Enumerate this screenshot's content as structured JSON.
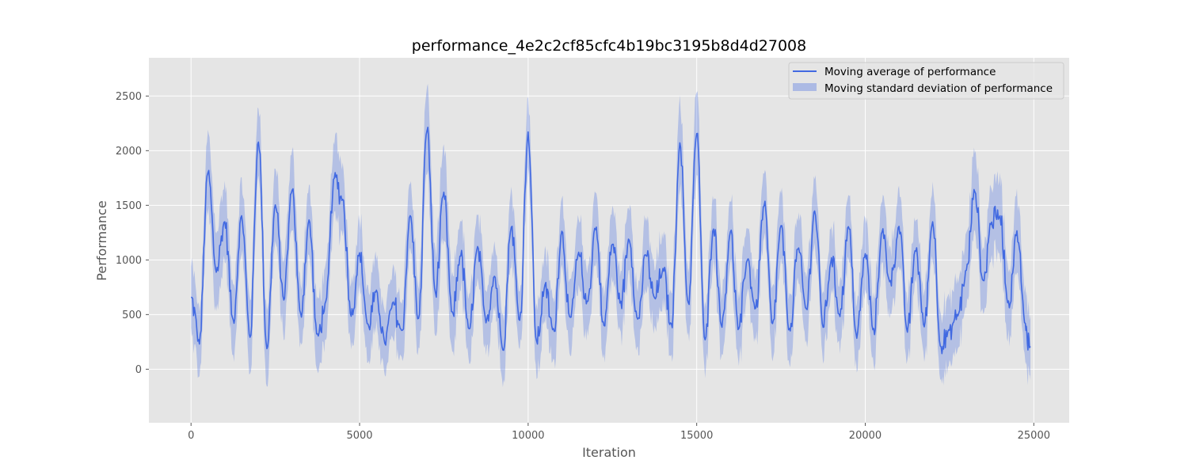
{
  "chart_data": {
    "type": "line",
    "title": "performance_4e2c2cf85cfc4b19bc3195b8d4d27008",
    "xlabel": "Iteration",
    "ylabel": "Performance",
    "xlim": [
      -1250,
      26050
    ],
    "ylim": [
      -490,
      2850
    ],
    "x_ticks": [
      0,
      5000,
      10000,
      15000,
      20000,
      25000
    ],
    "y_ticks": [
      0,
      500,
      1000,
      1500,
      2000,
      2500
    ],
    "grid": true,
    "legend_position": "top-right",
    "background": "#e5e5e5",
    "colors": {
      "line": "#4169e1",
      "band": "#4169e1"
    },
    "series": [
      {
        "name": "Moving average of performance",
        "kind": "line",
        "x": [
          0,
          250,
          500,
          750,
          1000,
          1250,
          1500,
          1750,
          2000,
          2250,
          2500,
          2750,
          3000,
          3250,
          3500,
          3750,
          4000,
          4250,
          4500,
          4750,
          5000,
          5250,
          5500,
          5750,
          6000,
          6250,
          6500,
          6750,
          7000,
          7250,
          7500,
          7750,
          8000,
          8250,
          8500,
          8750,
          9000,
          9250,
          9500,
          9750,
          10000,
          10250,
          10500,
          10750,
          11000,
          11250,
          11500,
          11750,
          12000,
          12250,
          12500,
          12750,
          13000,
          13250,
          13500,
          13750,
          14000,
          14250,
          14500,
          14750,
          15000,
          15250,
          15500,
          15750,
          16000,
          16250,
          16500,
          16750,
          17000,
          17250,
          17500,
          17750,
          18000,
          18250,
          18500,
          18750,
          19000,
          19250,
          19500,
          19750,
          20000,
          20250,
          20500,
          20750,
          21000,
          21250,
          21500,
          21750,
          22000,
          22250,
          22500,
          22750,
          23000,
          23250,
          23500,
          23750,
          24000,
          24250,
          24500,
          24750,
          24900
        ],
        "y": [
          650,
          250,
          1800,
          900,
          1350,
          450,
          1400,
          300,
          2100,
          200,
          1500,
          650,
          1650,
          500,
          1350,
          300,
          600,
          1750,
          1550,
          500,
          1050,
          400,
          700,
          250,
          600,
          350,
          1400,
          450,
          2200,
          700,
          1600,
          500,
          1050,
          350,
          1100,
          450,
          850,
          200,
          1300,
          450,
          2150,
          250,
          750,
          350,
          1250,
          450,
          1050,
          600,
          1300,
          400,
          1150,
          600,
          1200,
          450,
          1050,
          650,
          900,
          400,
          2050,
          600,
          2150,
          250,
          1300,
          400,
          1250,
          350,
          1000,
          550,
          1500,
          400,
          1300,
          350,
          1100,
          550,
          1450,
          400,
          1000,
          500,
          1300,
          300,
          1050,
          350,
          1250,
          800,
          1300,
          350,
          1100,
          400,
          1350,
          200,
          350,
          500,
          900,
          1650,
          800,
          1350,
          1400,
          600,
          1250,
          400,
          200
        ],
        "note_std": [
          300,
          300,
          350,
          400,
          320,
          300,
          310,
          350,
          350,
          320,
          350,
          320,
          330,
          300,
          330,
          320,
          320,
          360,
          330,
          280,
          330,
          310,
          320,
          300,
          310,
          300,
          330,
          310,
          420,
          370,
          420,
          350,
          320,
          290,
          320,
          300,
          300,
          290,
          330,
          300,
          350,
          300,
          320,
          300,
          330,
          300,
          320,
          300,
          320,
          290,
          320,
          300,
          320,
          300,
          320,
          300,
          320,
          300,
          400,
          320,
          430,
          300,
          320,
          300,
          320,
          300,
          320,
          300,
          330,
          300,
          320,
          300,
          310,
          300,
          320,
          300,
          310,
          300,
          320,
          290,
          330,
          300,
          330,
          320,
          320,
          300,
          310,
          300,
          320,
          300,
          300,
          300,
          310,
          350,
          320,
          330,
          340,
          310,
          330,
          310,
          300
        ]
      },
      {
        "name": "Moving standard deviation of performance",
        "kind": "band"
      }
    ]
  }
}
